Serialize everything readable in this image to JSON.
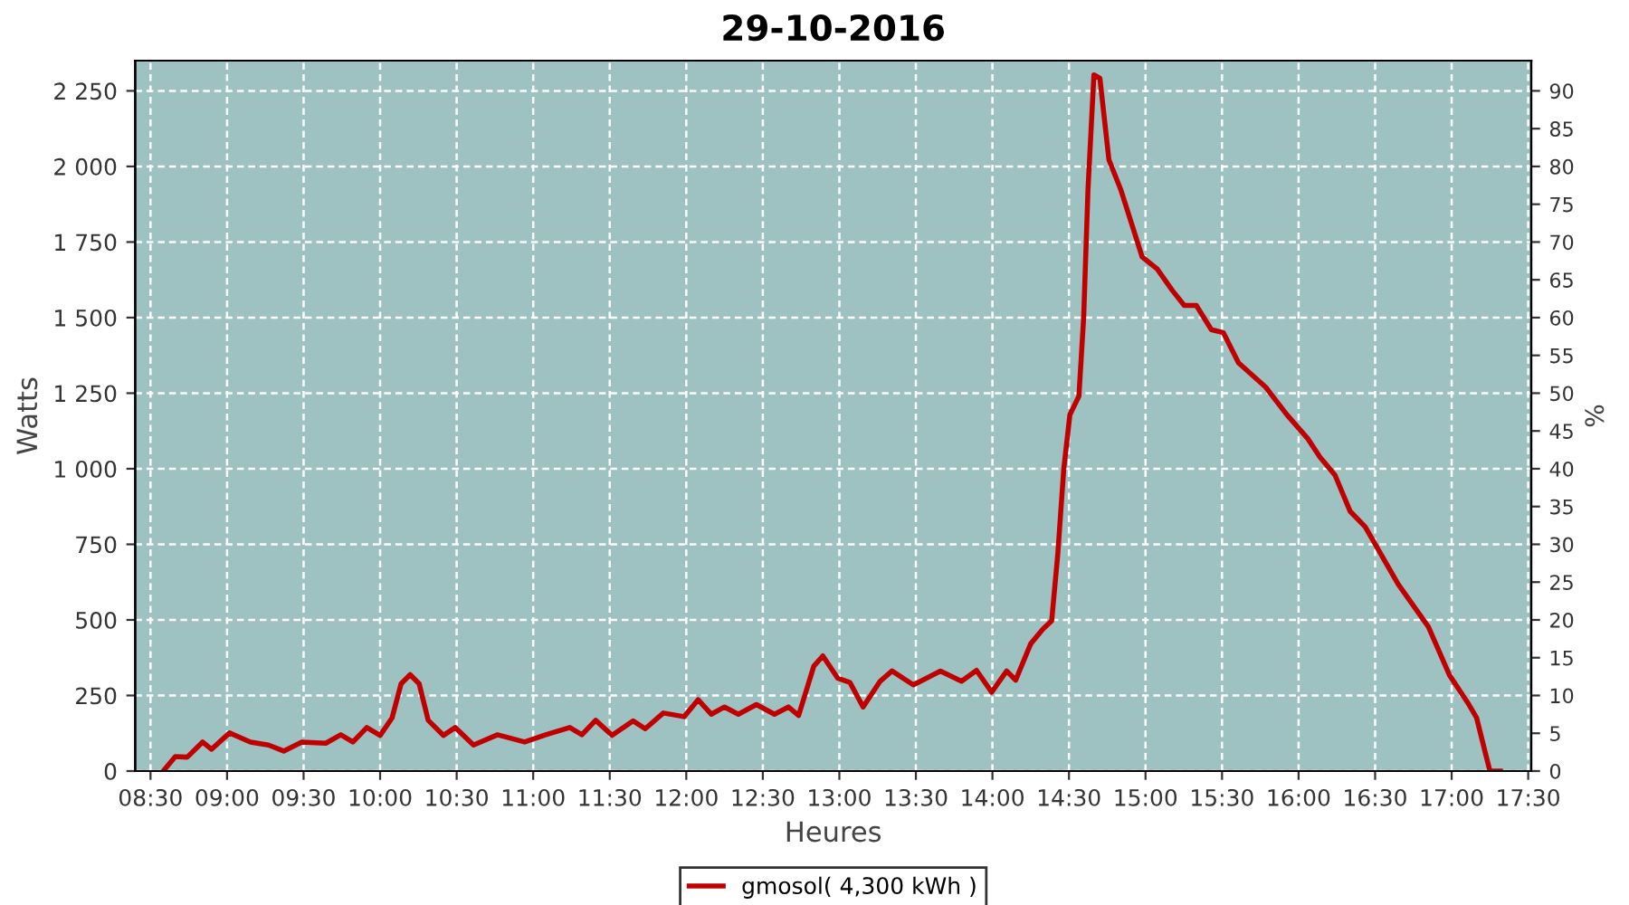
{
  "chart_data": {
    "type": "line",
    "title": "29-10-2016",
    "xlabel": "Heures",
    "ylabel": "Watts",
    "y2label": "%",
    "xlim": [
      8.4,
      17.52
    ],
    "ylim": [
      0,
      2350
    ],
    "y2lim": [
      0,
      94
    ],
    "xticks": [
      {
        "value": 8.5,
        "label": "08:30"
      },
      {
        "value": 9,
        "label": "09:00"
      },
      {
        "value": 9.5,
        "label": "09:30"
      },
      {
        "value": 10,
        "label": "10:00"
      },
      {
        "value": 10.5,
        "label": "10:30"
      },
      {
        "value": 11,
        "label": "11:00"
      },
      {
        "value": 11.5,
        "label": "11:30"
      },
      {
        "value": 12,
        "label": "12:00"
      },
      {
        "value": 12.5,
        "label": "12:30"
      },
      {
        "value": 13,
        "label": "13:00"
      },
      {
        "value": 13.5,
        "label": "13:30"
      },
      {
        "value": 14,
        "label": "14:00"
      },
      {
        "value": 14.5,
        "label": "14:30"
      },
      {
        "value": 15,
        "label": "15:00"
      },
      {
        "value": 15.5,
        "label": "15:30"
      },
      {
        "value": 16,
        "label": "16:00"
      },
      {
        "value": 16.5,
        "label": "16:30"
      },
      {
        "value": 17,
        "label": "17:00"
      },
      {
        "value": 17.5,
        "label": "17:30"
      }
    ],
    "yticks": [
      0,
      250,
      500,
      750,
      {
        "value": 1000,
        "label": "1 000"
      },
      {
        "value": 1250,
        "label": "1 250"
      },
      {
        "value": 1500,
        "label": "1 500"
      },
      {
        "value": 1750,
        "label": "1 750"
      },
      {
        "value": 2000,
        "label": "2 000"
      },
      {
        "value": 2250,
        "label": "2 250"
      }
    ],
    "y2ticks": [
      0,
      5,
      10,
      15,
      20,
      25,
      30,
      35,
      40,
      45,
      50,
      55,
      60,
      65,
      70,
      75,
      80,
      85,
      90
    ],
    "grid": true,
    "legend": "bottom",
    "marker": "none",
    "line_style": "solid",
    "series": [
      {
        "name": "gmosol( 4,300 kWh )",
        "color": "#c00000",
        "x": [
          8.583,
          8.662,
          8.74,
          8.84,
          8.898,
          9.016,
          9.153,
          9.271,
          9.37,
          9.488,
          9.645,
          9.743,
          9.822,
          9.913,
          10.0,
          10.078,
          10.137,
          10.196,
          10.255,
          10.314,
          10.413,
          10.491,
          10.61,
          10.767,
          10.944,
          11.082,
          11.239,
          11.318,
          11.408,
          11.515,
          11.653,
          11.732,
          11.85,
          11.986,
          12.077,
          12.163,
          12.25,
          12.34,
          12.458,
          12.576,
          12.667,
          12.734,
          12.833,
          12.892,
          12.99,
          13.069,
          13.155,
          13.266,
          13.344,
          13.483,
          13.66,
          13.798,
          13.896,
          13.995,
          14.093,
          14.152,
          14.25,
          14.329,
          14.387,
          14.427,
          14.466,
          14.506,
          14.565,
          14.596,
          14.624,
          14.663,
          14.702,
          14.761,
          14.84,
          14.978,
          15.076,
          15.175,
          15.253,
          15.332,
          15.43,
          15.509,
          15.608,
          15.785,
          15.923,
          16.061,
          16.139,
          16.238,
          16.337,
          16.435,
          16.651,
          16.848,
          16.986,
          17.104,
          17.163,
          17.222,
          17.25,
          17.318
        ],
        "values": [
          0,
          48,
          46,
          96,
          72,
          126,
          96,
          86,
          66,
          96,
          92,
          120,
          96,
          144,
          118,
          176,
          289,
          319,
          289,
          168,
          118,
          144,
          86,
          120,
          96,
          120,
          144,
          120,
          168,
          118,
          166,
          140,
          192,
          180,
          236,
          188,
          212,
          188,
          220,
          188,
          212,
          184,
          347,
          381,
          307,
          293,
          212,
          297,
          331,
          285,
          331,
          297,
          333,
          261,
          331,
          301,
          421,
          469,
          497,
          718,
          999,
          1179,
          1240,
          1500,
          1921,
          2303,
          2292,
          2022,
          1921,
          1701,
          1661,
          1590,
          1540,
          1540,
          1460,
          1450,
          1350,
          1270,
          1179,
          1099,
          1039,
          979,
          859,
          808,
          618,
          477,
          317,
          227,
          176,
          56,
          0,
          0
        ]
      }
    ]
  }
}
